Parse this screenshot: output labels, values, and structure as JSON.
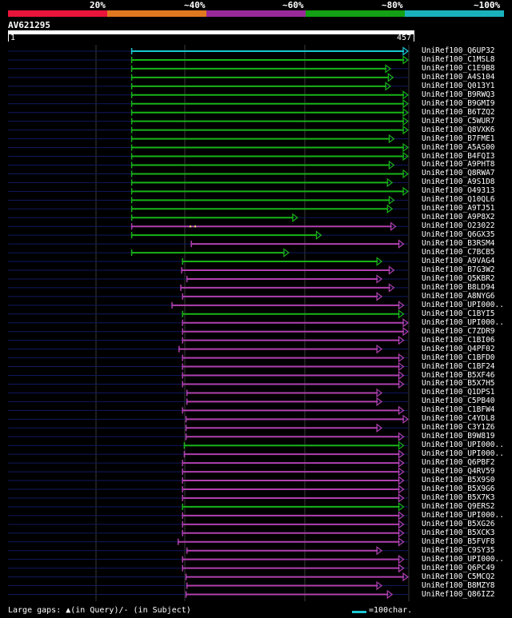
{
  "legend": {
    "labels": [
      "20%",
      "~40%",
      "~60%",
      "~80%",
      "~100%"
    ],
    "colors": [
      "#e8153a",
      "#e07820",
      "#9a2a9a",
      "#14a014",
      "#19b2bc"
    ]
  },
  "query": {
    "name": "AV621295",
    "start_label": "1",
    "end_label": "457",
    "length": 457
  },
  "colors": {
    "cyan": "#19c8d2",
    "green": "#18b418",
    "magenta": "#b040b0",
    "thin": "#101860",
    "grid": "#3a3a3a",
    "marker": "#e8e870"
  },
  "hits": [
    {
      "name": "UniRef100_Q6UP32",
      "start": 142,
      "end": 457,
      "color": "cyan"
    },
    {
      "name": "UniRef100_C1MSL8",
      "start": 142,
      "end": 457,
      "color": "green"
    },
    {
      "name": "UniRef100_C1E9B8",
      "start": 142,
      "end": 437,
      "color": "green"
    },
    {
      "name": "UniRef100_A4S104",
      "start": 142,
      "end": 440,
      "color": "green"
    },
    {
      "name": "UniRef100_Q013Y1",
      "start": 142,
      "end": 437,
      "color": "green"
    },
    {
      "name": "UniRef100_B9RWQ3",
      "start": 142,
      "end": 457,
      "color": "green"
    },
    {
      "name": "UniRef100_B9GMI9",
      "start": 142,
      "end": 457,
      "color": "green"
    },
    {
      "name": "UniRef100_B6TZQ2",
      "start": 142,
      "end": 457,
      "color": "green"
    },
    {
      "name": "UniRef100_C5WUR7",
      "start": 142,
      "end": 457,
      "color": "green"
    },
    {
      "name": "UniRef100_Q8VXK6",
      "start": 142,
      "end": 457,
      "color": "green"
    },
    {
      "name": "UniRef100_B7FME1",
      "start": 142,
      "end": 441,
      "color": "green"
    },
    {
      "name": "UniRef100_A5AS00",
      "start": 142,
      "end": 457,
      "color": "green"
    },
    {
      "name": "UniRef100_B4FQI3",
      "start": 142,
      "end": 457,
      "color": "green"
    },
    {
      "name": "UniRef100_A9PHT8",
      "start": 142,
      "end": 441,
      "color": "green"
    },
    {
      "name": "UniRef100_Q8RWA7",
      "start": 142,
      "end": 457,
      "color": "green"
    },
    {
      "name": "UniRef100_A9S1D8",
      "start": 142,
      "end": 439,
      "color": "green"
    },
    {
      "name": "UniRef100_O49313",
      "start": 142,
      "end": 457,
      "color": "green"
    },
    {
      "name": "UniRef100_Q10QL6",
      "start": 142,
      "end": 441,
      "color": "green"
    },
    {
      "name": "UniRef100_A9TJ51",
      "start": 142,
      "end": 439,
      "color": "green"
    },
    {
      "name": "UniRef100_A9P8X2",
      "start": 142,
      "end": 331,
      "color": "green"
    },
    {
      "name": "UniRef100_O23022",
      "start": 142,
      "end": 443,
      "color": "magenta",
      "gap": true
    },
    {
      "name": "UniRef100_Q6GX35",
      "start": 142,
      "end": 358,
      "color": "green"
    },
    {
      "name": "UniRef100_B3RSM4",
      "start": 210,
      "end": 452,
      "color": "magenta"
    },
    {
      "name": "UniRef100_C7BCB5",
      "start": 142,
      "end": 321,
      "color": "green"
    },
    {
      "name": "UniRef100_A9VAG4",
      "start": 200,
      "end": 427,
      "color": "green"
    },
    {
      "name": "UniRef100_B7G3W2",
      "start": 199,
      "end": 441,
      "color": "magenta"
    },
    {
      "name": "UniRef100_Q5KBR2",
      "start": 205,
      "end": 427,
      "color": "magenta"
    },
    {
      "name": "UniRef100_B8LD94",
      "start": 198,
      "end": 441,
      "color": "magenta"
    },
    {
      "name": "UniRef100_A8NYG6",
      "start": 200,
      "end": 427,
      "color": "magenta"
    },
    {
      "name": "UniRef100_UPI000..",
      "start": 188,
      "end": 452,
      "color": "magenta"
    },
    {
      "name": "UniRef100_C1BYI5",
      "start": 200,
      "end": 452,
      "color": "green"
    },
    {
      "name": "UniRef100_UPI000..",
      "start": 200,
      "end": 457,
      "color": "magenta"
    },
    {
      "name": "UniRef100_C7ZDR9",
      "start": 200,
      "end": 457,
      "color": "magenta"
    },
    {
      "name": "UniRef100_C1BI06",
      "start": 200,
      "end": 452,
      "color": "magenta"
    },
    {
      "name": "UniRef100_Q4PF02",
      "start": 196,
      "end": 427,
      "color": "magenta"
    },
    {
      "name": "UniRef100_C1BFD0",
      "start": 200,
      "end": 452,
      "color": "magenta"
    },
    {
      "name": "UniRef100_C1BF24",
      "start": 200,
      "end": 452,
      "color": "magenta"
    },
    {
      "name": "UniRef100_B5XF46",
      "start": 200,
      "end": 452,
      "color": "magenta"
    },
    {
      "name": "UniRef100_B5X7H5",
      "start": 200,
      "end": 452,
      "color": "magenta"
    },
    {
      "name": "UniRef100_Q1DPS1",
      "start": 205,
      "end": 427,
      "color": "magenta"
    },
    {
      "name": "UniRef100_C5PB40",
      "start": 205,
      "end": 427,
      "color": "magenta"
    },
    {
      "name": "UniRef100_C1BFW4",
      "start": 200,
      "end": 452,
      "color": "magenta"
    },
    {
      "name": "UniRef100_C4YDL8",
      "start": 204,
      "end": 457,
      "color": "magenta"
    },
    {
      "name": "UniRef100_C3Y1Z6",
      "start": 204,
      "end": 427,
      "color": "magenta"
    },
    {
      "name": "UniRef100_B9W819",
      "start": 204,
      "end": 452,
      "color": "magenta"
    },
    {
      "name": "UniRef100_UPI000..",
      "start": 202,
      "end": 452,
      "color": "green"
    },
    {
      "name": "UniRef100_UPI000..",
      "start": 202,
      "end": 452,
      "color": "magenta"
    },
    {
      "name": "UniRef100_Q6PBF2",
      "start": 200,
      "end": 452,
      "color": "magenta"
    },
    {
      "name": "UniRef100_Q4RV59",
      "start": 200,
      "end": 452,
      "color": "magenta"
    },
    {
      "name": "UniRef100_B5X9S0",
      "start": 200,
      "end": 452,
      "color": "magenta"
    },
    {
      "name": "UniRef100_B5X9G6",
      "start": 200,
      "end": 452,
      "color": "magenta"
    },
    {
      "name": "UniRef100_B5X7K3",
      "start": 200,
      "end": 452,
      "color": "magenta"
    },
    {
      "name": "UniRef100_Q9ERS2",
      "start": 200,
      "end": 452,
      "color": "green"
    },
    {
      "name": "UniRef100_UPI000..",
      "start": 200,
      "end": 452,
      "color": "magenta"
    },
    {
      "name": "UniRef100_B5XG26",
      "start": 200,
      "end": 452,
      "color": "magenta"
    },
    {
      "name": "UniRef100_B5XCK3",
      "start": 200,
      "end": 452,
      "color": "magenta"
    },
    {
      "name": "UniRef100_B5FVF8",
      "start": 195,
      "end": 452,
      "color": "magenta"
    },
    {
      "name": "UniRef100_C9SY35",
      "start": 205,
      "end": 427,
      "color": "magenta"
    },
    {
      "name": "UniRef100_UPI000..",
      "start": 200,
      "end": 452,
      "color": "magenta"
    },
    {
      "name": "UniRef100_Q6PC49",
      "start": 200,
      "end": 452,
      "color": "magenta"
    },
    {
      "name": "UniRef100_C5MCQ2",
      "start": 204,
      "end": 457,
      "color": "magenta"
    },
    {
      "name": "UniRef100_B8MZY8",
      "start": 205,
      "end": 427,
      "color": "magenta"
    },
    {
      "name": "UniRef100_Q86IZ2",
      "start": 204,
      "end": 439,
      "color": "magenta"
    }
  ],
  "footer": {
    "gaps_text": "Large gaps: ▲(in Query)/- (in Subject)",
    "scale_text": "=100char."
  }
}
